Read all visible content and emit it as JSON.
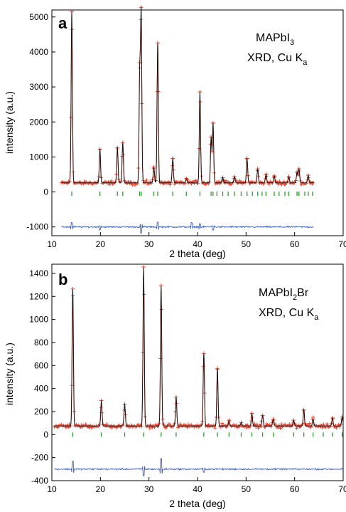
{
  "chart_data": [
    {
      "type": "line",
      "panel": "a",
      "label_main": "MAPbI",
      "label_sub": "3",
      "label2_main": "XRD, Cu K",
      "label2_sub": "a",
      "xlabel": "2 theta (deg)",
      "ylabel": "intensity (a.u.)",
      "xlim": [
        10,
        70
      ],
      "ylim": [
        -1250,
        5200
      ],
      "xticks": [
        10,
        20,
        30,
        40,
        50,
        60,
        70
      ],
      "yticks": [
        -1000,
        0,
        1000,
        2000,
        3000,
        4000,
        5000
      ],
      "range": [
        12,
        64
      ],
      "baseline": 260,
      "noise": 45,
      "peaks": [
        {
          "x": 14.1,
          "h": 4900
        },
        {
          "x": 19.9,
          "h": 950
        },
        {
          "x": 23.5,
          "h": 1000
        },
        {
          "x": 24.6,
          "h": 1150
        },
        {
          "x": 28.1,
          "h": 3100
        },
        {
          "x": 28.4,
          "h": 4800
        },
        {
          "x": 31.0,
          "h": 450
        },
        {
          "x": 31.8,
          "h": 4000
        },
        {
          "x": 34.9,
          "h": 700
        },
        {
          "x": 37.7,
          "h": 120
        },
        {
          "x": 40.5,
          "h": 2600
        },
        {
          "x": 42.8,
          "h": 1300
        },
        {
          "x": 43.2,
          "h": 1700
        },
        {
          "x": 45.2,
          "h": 150
        },
        {
          "x": 47.6,
          "h": 180
        },
        {
          "x": 50.2,
          "h": 700
        },
        {
          "x": 52.4,
          "h": 400
        },
        {
          "x": 54.1,
          "h": 250
        },
        {
          "x": 55.8,
          "h": 200
        },
        {
          "x": 58.8,
          "h": 180
        },
        {
          "x": 60.5,
          "h": 300
        },
        {
          "x": 60.9,
          "h": 400
        },
        {
          "x": 62.8,
          "h": 220
        }
      ],
      "reflections": [
        14.1,
        19.9,
        23.5,
        24.6,
        28.1,
        28.4,
        31.0,
        31.8,
        34.9,
        37.7,
        40.5,
        42.8,
        43.2,
        44.0,
        45.2,
        46.3,
        47.6,
        49.0,
        50.2,
        51.3,
        52.4,
        53.3,
        54.1,
        55.8,
        56.8,
        58.0,
        58.8,
        60.5,
        60.9,
        62.1,
        62.8,
        63.7
      ],
      "tick_y": -50,
      "diff_y": -1000,
      "diff_spikes": [
        {
          "x": 14.1,
          "a": 120
        },
        {
          "x": 19.9,
          "a": -70
        },
        {
          "x": 28.4,
          "a": -180
        },
        {
          "x": 31.8,
          "a": 140
        },
        {
          "x": 38.8,
          "a": 110
        },
        {
          "x": 40.5,
          "a": 90
        },
        {
          "x": 43.2,
          "a": -80
        }
      ]
    },
    {
      "type": "line",
      "panel": "b",
      "label_main": "MAPbI",
      "label_sub": "2",
      "label_tail": "Br",
      "label2_main": "XRD, Cu K",
      "label2_sub": "a",
      "xlabel": "2 theta (deg)",
      "ylabel": "intensity (a.u.)",
      "xlim": [
        10,
        70
      ],
      "ylim": [
        -400,
        1480
      ],
      "xticks": [
        10,
        20,
        30,
        40,
        50,
        60,
        70
      ],
      "yticks": [
        -400,
        -200,
        0,
        200,
        400,
        600,
        800,
        1000,
        1200,
        1400
      ],
      "range": [
        10.5,
        70
      ],
      "baseline": 75,
      "noise": 14,
      "peaks": [
        {
          "x": 14.3,
          "h": 1190
        },
        {
          "x": 20.2,
          "h": 220
        },
        {
          "x": 25.0,
          "h": 190
        },
        {
          "x": 28.9,
          "h": 1380
        },
        {
          "x": 32.5,
          "h": 1220
        },
        {
          "x": 35.6,
          "h": 250
        },
        {
          "x": 41.3,
          "h": 630
        },
        {
          "x": 44.1,
          "h": 500
        },
        {
          "x": 46.5,
          "h": 45
        },
        {
          "x": 49.0,
          "h": 30
        },
        {
          "x": 51.2,
          "h": 110
        },
        {
          "x": 53.4,
          "h": 90
        },
        {
          "x": 55.6,
          "h": 60
        },
        {
          "x": 59.8,
          "h": 50
        },
        {
          "x": 61.9,
          "h": 140
        },
        {
          "x": 63.8,
          "h": 60
        },
        {
          "x": 67.8,
          "h": 70
        },
        {
          "x": 69.8,
          "h": 80
        }
      ],
      "reflections": [
        14.3,
        20.2,
        25.0,
        28.9,
        32.5,
        35.6,
        41.3,
        44.1,
        46.5,
        49.0,
        51.2,
        53.4,
        55.6,
        59.8,
        61.9,
        63.8,
        65.9,
        67.8,
        69.8
      ],
      "tick_y": 0,
      "diff_y": -300,
      "diff_spikes": [
        {
          "x": 14.3,
          "a": 70
        },
        {
          "x": 28.9,
          "a": -60
        },
        {
          "x": 32.5,
          "a": 90
        },
        {
          "x": 41.3,
          "a": -30
        }
      ]
    }
  ]
}
